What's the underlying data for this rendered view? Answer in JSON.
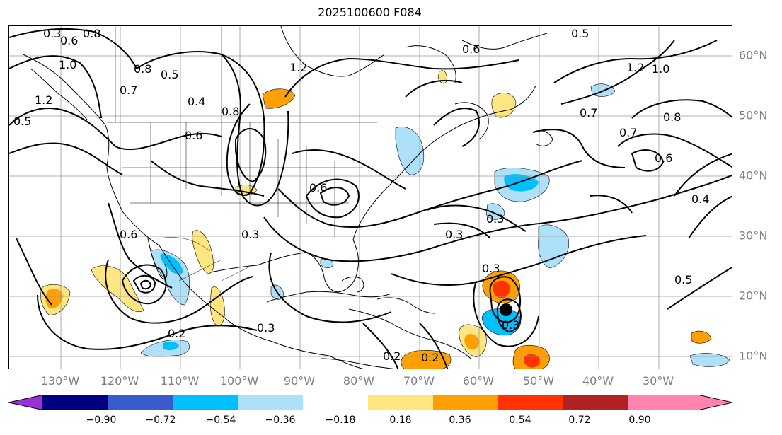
{
  "title": "2025100600 F084",
  "longitude_labels": [
    "130°W",
    "120°W",
    "110°W",
    "100°W",
    "90°W",
    "80°W",
    "70°W",
    "60°W",
    "50°W",
    "40°W",
    "30°W"
  ],
  "latitude_labels": [
    "60°N",
    "50°N",
    "40°N",
    "30°N",
    "20°N",
    "10°N"
  ],
  "colorbar": {
    "ticks": [
      "−0.90",
      "−0.72",
      "−0.54",
      "−0.36",
      "−0.18",
      "0.18",
      "0.36",
      "0.54",
      "0.72",
      "0.90"
    ],
    "colors": [
      "#9b30d6",
      "#000080",
      "#3a5bcd",
      "#00bfff",
      "#aee0fa",
      "#ffffff",
      "#ffe680",
      "#ffa000",
      "#ff3300",
      "#b22222",
      "#ff85b0"
    ]
  },
  "contour_labels": [
    "0.3",
    "0.6",
    "0.8",
    "0.5",
    "0.8",
    "1.0",
    "1.2",
    "0.7",
    "0.4",
    "0.5",
    "0.6",
    "0.8",
    "1.2",
    "0.6",
    "0.3",
    "0.2",
    "0.3",
    "0.3",
    "0.3",
    "0.7",
    "0.5",
    "0.6",
    "0.7",
    "0.8",
    "1.0",
    "1.2",
    "0.5",
    "0.4",
    "0.3",
    "0.2",
    "0.3",
    "0.2",
    "0.6",
    "0.6"
  ],
  "icons": {
    "storm_marker": "storm-center-icon"
  }
}
